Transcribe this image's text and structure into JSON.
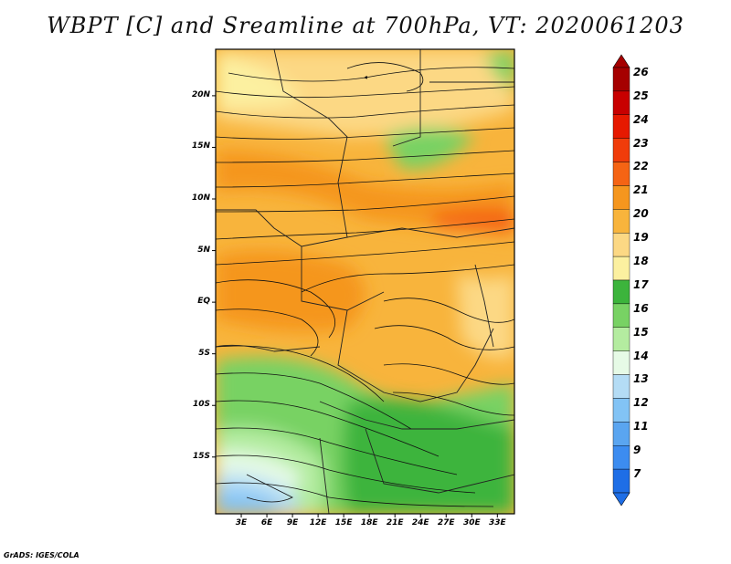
{
  "title": "WBPT [C] and Sreamline at 700hPa, VT: 2020061203",
  "footer": "GrADS: IGES/COLA",
  "map": {
    "lat_range": [
      -20.5,
      24.5
    ],
    "lon_range": [
      0,
      35
    ],
    "lat_labels": [
      {
        "lat": 20,
        "text": "20N"
      },
      {
        "lat": 15,
        "text": "15N"
      },
      {
        "lat": 10,
        "text": "10N"
      },
      {
        "lat": 5,
        "text": "5N"
      },
      {
        "lat": 0,
        "text": "EQ"
      },
      {
        "lat": -5,
        "text": "5S"
      },
      {
        "lat": -10,
        "text": "10S"
      },
      {
        "lat": -15,
        "text": "15S"
      }
    ],
    "lon_labels": [
      {
        "lon": 3,
        "text": "3E"
      },
      {
        "lon": 6,
        "text": "6E"
      },
      {
        "lon": 9,
        "text": "9E"
      },
      {
        "lon": 12,
        "text": "12E"
      },
      {
        "lon": 15,
        "text": "15E"
      },
      {
        "lon": 18,
        "text": "18E"
      },
      {
        "lon": 21,
        "text": "21E"
      },
      {
        "lon": 24,
        "text": "24E"
      },
      {
        "lon": 27,
        "text": "27E"
      },
      {
        "lon": 30,
        "text": "30E"
      },
      {
        "lon": 33,
        "text": "33E"
      }
    ]
  },
  "colorbar": {
    "levels": [
      {
        "label": "26",
        "color": "#a50000"
      },
      {
        "label": "25",
        "color": "#c80000"
      },
      {
        "label": "24",
        "color": "#e61900"
      },
      {
        "label": "23",
        "color": "#f03c0a"
      },
      {
        "label": "22",
        "color": "#f56414"
      },
      {
        "label": "21",
        "color": "#f5961e"
      },
      {
        "label": "20",
        "color": "#f8b43c"
      },
      {
        "label": "19",
        "color": "#fcd884"
      },
      {
        "label": "18",
        "color": "#fcf0a0"
      },
      {
        "label": "17",
        "color": "#3cb43c"
      },
      {
        "label": "16",
        "color": "#78d264"
      },
      {
        "label": "15",
        "color": "#b4eca0"
      },
      {
        "label": "14",
        "color": "#e6fae6"
      },
      {
        "label": "13",
        "color": "#b4dcf5"
      },
      {
        "label": "12",
        "color": "#82c3f5"
      },
      {
        "label": "11",
        "color": "#5aa5f0"
      },
      {
        "label": "9",
        "color": "#3c8cf0"
      },
      {
        "label": "7",
        "color": "#1e6ee6"
      }
    ]
  }
}
